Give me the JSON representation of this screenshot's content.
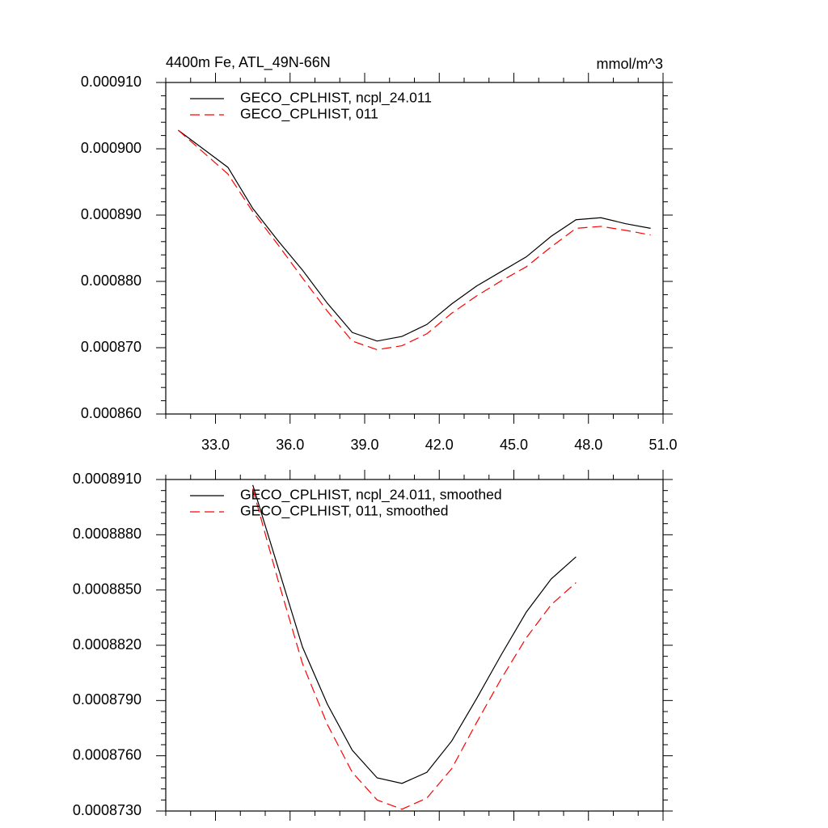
{
  "chart_data": [
    {
      "type": "line",
      "title": "4400m Fe, ATL_49N-66N",
      "units": "mmol/m^3",
      "x": [
        31.5,
        32.5,
        33.5,
        34.5,
        35.5,
        36.5,
        37.5,
        38.5,
        39.5,
        40.5,
        41.5,
        42.5,
        43.5,
        44.5,
        45.5,
        46.5,
        47.5,
        48.5,
        49.5,
        50.5
      ],
      "series": [
        {
          "name": "GECO_CPLHIST, ncpl_24.011",
          "color": "#000000",
          "line_style": "solid",
          "values": [
            0.0009028,
            0.0009,
            0.0008972,
            0.000891,
            0.0008862,
            0.0008817,
            0.0008767,
            0.0008723,
            0.000871,
            0.0008717,
            0.0008735,
            0.0008766,
            0.0008793,
            0.0008815,
            0.0008837,
            0.0008868,
            0.0008893,
            0.0008896,
            0.0008887,
            0.000888
          ]
        },
        {
          "name": "GECO_CPLHIST, 011",
          "color": "#ff0000",
          "line_style": "dashed",
          "values": [
            0.0009028,
            0.0008995,
            0.0008962,
            0.0008905,
            0.0008856,
            0.0008805,
            0.0008755,
            0.000871,
            0.0008697,
            0.0008703,
            0.0008721,
            0.0008752,
            0.0008778,
            0.0008801,
            0.0008822,
            0.0008852,
            0.000888,
            0.0008883,
            0.0008877,
            0.000887
          ]
        }
      ],
      "xlim": [
        31,
        51
      ],
      "ylim": [
        0.00086,
        0.00091
      ],
      "xticks": [
        {
          "value": 33,
          "label": "33.0"
        },
        {
          "value": 36,
          "label": "36.0"
        },
        {
          "value": 39,
          "label": "39.0"
        },
        {
          "value": 42,
          "label": "42.0"
        },
        {
          "value": 45,
          "label": "45.0"
        },
        {
          "value": 48,
          "label": "48.0"
        },
        {
          "value": 51,
          "label": "51.0"
        }
      ],
      "yticks": [
        {
          "value": 0.00086,
          "label": "0.000860"
        },
        {
          "value": 0.00087,
          "label": "0.000870"
        },
        {
          "value": 0.00088,
          "label": "0.000880"
        },
        {
          "value": 0.00089,
          "label": "0.000890"
        },
        {
          "value": 0.0009,
          "label": "0.000900"
        },
        {
          "value": 0.00091,
          "label": "0.000910"
        }
      ]
    },
    {
      "type": "line",
      "x": [
        34.5,
        35.5,
        36.5,
        37.5,
        38.5,
        39.5,
        40.5,
        41.5,
        42.5,
        43.5,
        44.5,
        45.5,
        46.5,
        47.5
      ],
      "series": [
        {
          "name": "GECO_CPLHIST, ncpl_24.011, smoothed",
          "color": "#000000",
          "line_style": "solid",
          "values": [
            0.0008907,
            0.0008863,
            0.0008819,
            0.0008788,
            0.0008763,
            0.0008748,
            0.0008745,
            0.0008751,
            0.0008768,
            0.0008791,
            0.0008815,
            0.0008838,
            0.0008856,
            0.0008868
          ]
        },
        {
          "name": "GECO_CPLHIST, 011, smoothed",
          "color": "#ff0000",
          "line_style": "dashed",
          "values": [
            0.0008905,
            0.0008856,
            0.000881,
            0.0008777,
            0.0008751,
            0.0008736,
            0.0008731,
            0.0008737,
            0.0008753,
            0.0008778,
            0.0008802,
            0.0008824,
            0.0008842,
            0.0008854
          ]
        }
      ],
      "xlim": [
        31,
        51
      ],
      "ylim": [
        0.000873,
        0.000891
      ],
      "xticks": [
        33,
        36,
        39,
        42,
        45,
        48,
        51
      ],
      "yticks": [
        {
          "value": 0.000873,
          "label": "0.0008730"
        },
        {
          "value": 0.000876,
          "label": "0.0008760"
        },
        {
          "value": 0.000879,
          "label": "0.0008790"
        },
        {
          "value": 0.000882,
          "label": "0.0008820"
        },
        {
          "value": 0.000885,
          "label": "0.0008850"
        },
        {
          "value": 0.000888,
          "label": "0.0008880"
        },
        {
          "value": 0.000891,
          "label": "0.0008910"
        }
      ]
    }
  ]
}
